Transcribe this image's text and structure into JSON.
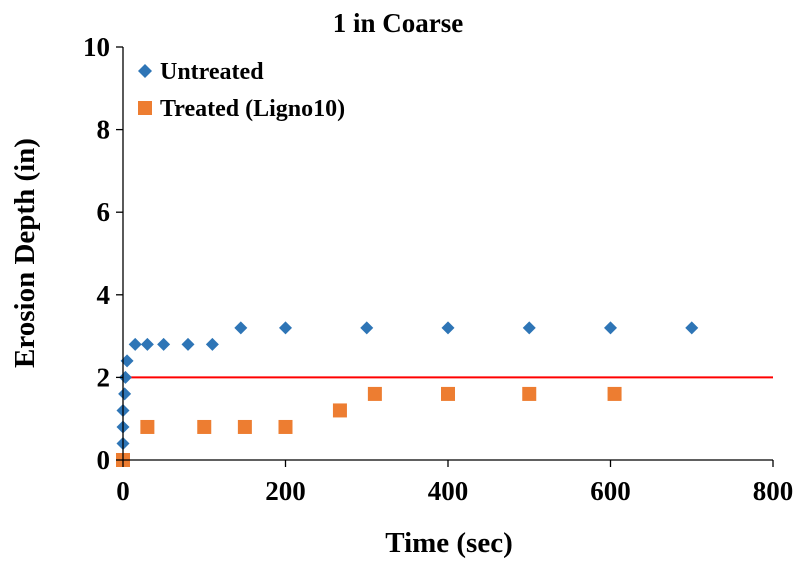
{
  "chart_data": {
    "type": "scatter",
    "title": "1 in Coarse",
    "xlabel": "Time (sec)",
    "ylabel": "Erosion Depth (in)",
    "xlim": [
      0,
      800
    ],
    "ylim": [
      0,
      10
    ],
    "xticks": [
      0,
      200,
      400,
      600,
      800
    ],
    "yticks": [
      0,
      2,
      4,
      6,
      8,
      10
    ],
    "grid": false,
    "legend_position": "top-left",
    "series": [
      {
        "name": "Untreated",
        "marker": "diamond",
        "color": "#2e75b6",
        "points": [
          [
            0,
            0
          ],
          [
            0,
            0.4
          ],
          [
            0,
            0.8
          ],
          [
            0,
            1.2
          ],
          [
            2,
            1.6
          ],
          [
            3,
            2.0
          ],
          [
            5,
            2.4
          ],
          [
            15,
            2.8
          ],
          [
            30,
            2.8
          ],
          [
            50,
            2.8
          ],
          [
            80,
            2.8
          ],
          [
            110,
            2.8
          ],
          [
            145,
            3.2
          ],
          [
            200,
            3.2
          ],
          [
            300,
            3.2
          ],
          [
            400,
            3.2
          ],
          [
            500,
            3.2
          ],
          [
            600,
            3.2
          ],
          [
            700,
            3.2
          ]
        ]
      },
      {
        "name": "Treated (Ligno10)",
        "marker": "square",
        "color": "#ed7d31",
        "points": [
          [
            0,
            0
          ],
          [
            30,
            0.8
          ],
          [
            100,
            0.8
          ],
          [
            150,
            0.8
          ],
          [
            200,
            0.8
          ],
          [
            267,
            1.2
          ],
          [
            310,
            1.6
          ],
          [
            400,
            1.6
          ],
          [
            500,
            1.6
          ],
          [
            605,
            1.6
          ]
        ]
      }
    ],
    "reference_line": {
      "y": 2.0,
      "color": "#ff0000"
    }
  }
}
